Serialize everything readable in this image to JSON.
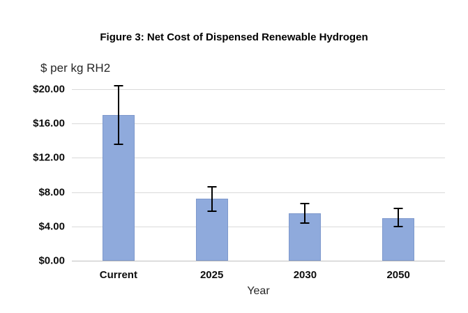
{
  "chart_data": {
    "type": "bar",
    "title": "Figure 3: Net Cost of Dispensed Renewable Hydrogen",
    "xlabel": "Year",
    "ylabel": "$ per kg RH2",
    "categories": [
      "Current",
      "2025",
      "2030",
      "2050"
    ],
    "values": [
      17.0,
      7.2,
      5.5,
      5.0
    ],
    "error_low": [
      13.6,
      5.8,
      4.4,
      4.0
    ],
    "error_high": [
      20.4,
      8.6,
      6.7,
      6.1
    ],
    "ylim": [
      0,
      20
    ],
    "yticks": [
      0,
      4,
      8,
      12,
      16,
      20
    ],
    "ytick_labels": [
      "$0.00",
      "$4.00",
      "$8.00",
      "$12.00",
      "$16.00",
      "$20.00"
    ],
    "bar_color": "#8faadc",
    "bar_border_color": "#7e99cc",
    "error_color": "#000000",
    "grid": true,
    "legend": false
  }
}
